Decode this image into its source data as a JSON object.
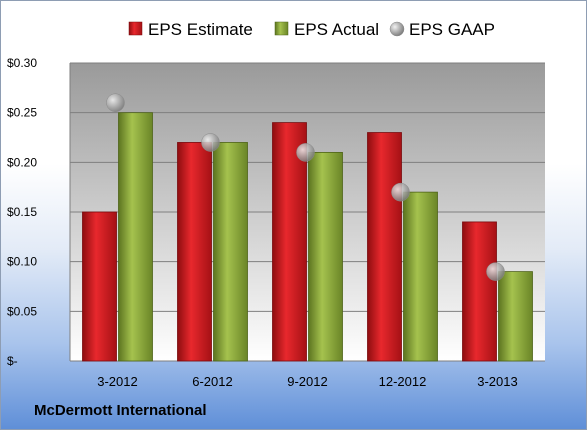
{
  "company": "McDermott International",
  "chart_data": {
    "type": "bar",
    "categories": [
      "3-2012",
      "6-2012",
      "9-2012",
      "12-2012",
      "3-2013"
    ],
    "series": [
      {
        "name": "EPS Estimate",
        "kind": "bar",
        "color": "#c8161b",
        "values": [
          0.15,
          0.22,
          0.24,
          0.23,
          0.14
        ]
      },
      {
        "name": "EPS Actual",
        "kind": "bar",
        "color": "#7f9a2f",
        "values": [
          0.25,
          0.22,
          0.21,
          0.17,
          0.09
        ]
      },
      {
        "name": "EPS GAAP",
        "kind": "marker",
        "color": "#a9a9a9",
        "values": [
          0.26,
          0.22,
          0.21,
          0.17,
          0.09
        ]
      }
    ],
    "yticks": [
      0,
      0.05,
      0.1,
      0.15,
      0.2,
      0.25,
      0.3
    ],
    "ytick_labels": [
      "$-",
      "$0.05",
      "$0.10",
      "$0.15",
      "$0.20",
      "$0.25",
      "$0.30"
    ],
    "ylim": [
      0,
      0.3
    ],
    "grid": true,
    "legend_position": "top"
  }
}
